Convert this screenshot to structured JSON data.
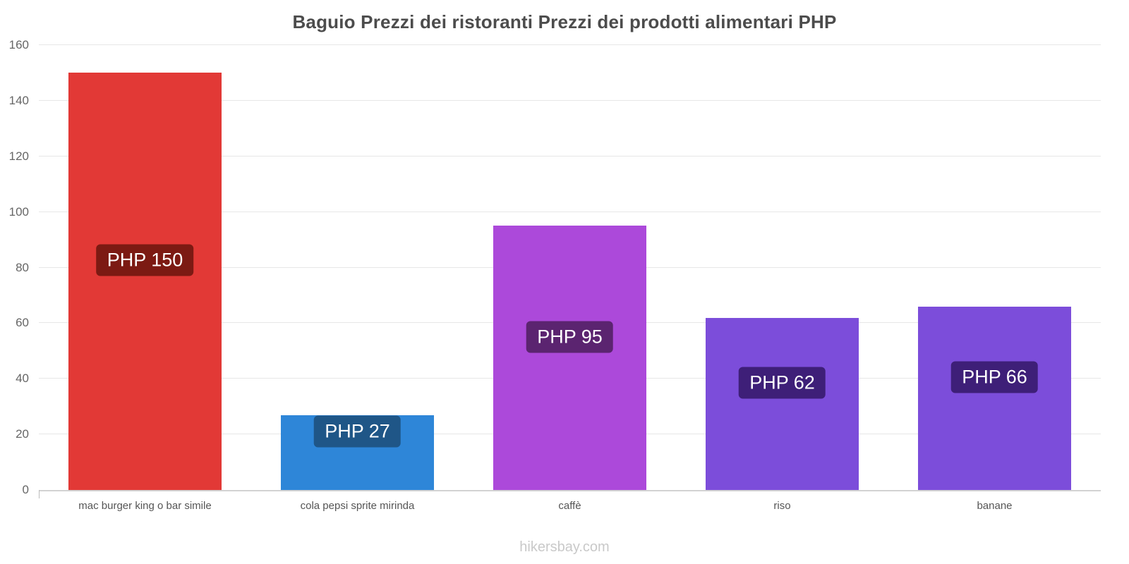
{
  "chart_data": {
    "type": "bar",
    "title": "Baguio Prezzi dei ristoranti Prezzi dei prodotti alimentari PHP",
    "categories": [
      "mac burger king o bar simile",
      "cola pepsi sprite mirinda",
      "caffè",
      "riso",
      "banane"
    ],
    "values": [
      150,
      27,
      95,
      62,
      66
    ],
    "bar_labels": [
      "PHP 150",
      "PHP 27",
      "PHP 95",
      "PHP 62",
      "PHP 66"
    ],
    "bar_colors": [
      "#e23936",
      "#2e86d8",
      "#ac49da",
      "#7c4dda",
      "#7c4dda"
    ],
    "label_bg_colors": [
      "#7c1a13",
      "#1f5687",
      "#5b2470",
      "#3e1f78",
      "#3e1f78"
    ],
    "currency": "PHP",
    "ylim": [
      0,
      160
    ],
    "yticks": [
      0,
      20,
      40,
      60,
      80,
      100,
      120,
      140,
      160
    ],
    "grid": "horizontal",
    "legend": "none",
    "xlabel": "",
    "ylabel": ""
  },
  "footer": {
    "text": "hikersbay.com"
  }
}
